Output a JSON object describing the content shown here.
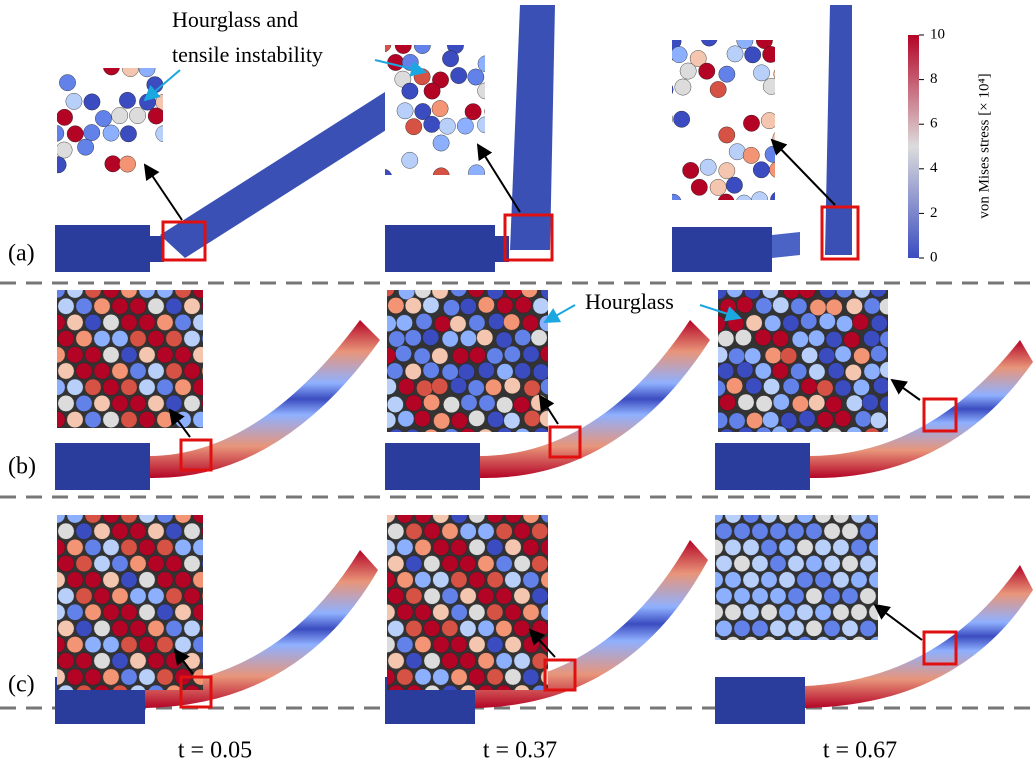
{
  "figure": {
    "annotations": [
      "Hourglass and",
      "tensile instability",
      "Hourglass"
    ],
    "row_labels": [
      "(a)",
      "(b)",
      "(c)"
    ],
    "time_labels": [
      "t = 0.05",
      "t = 0.37",
      "t = 0.67"
    ],
    "colorbar": {
      "label": "von Mises stress [× 10⁴]",
      "lim": [
        0,
        10
      ],
      "ticks": [
        0,
        2,
        4,
        6,
        8,
        10
      ]
    }
  }
}
